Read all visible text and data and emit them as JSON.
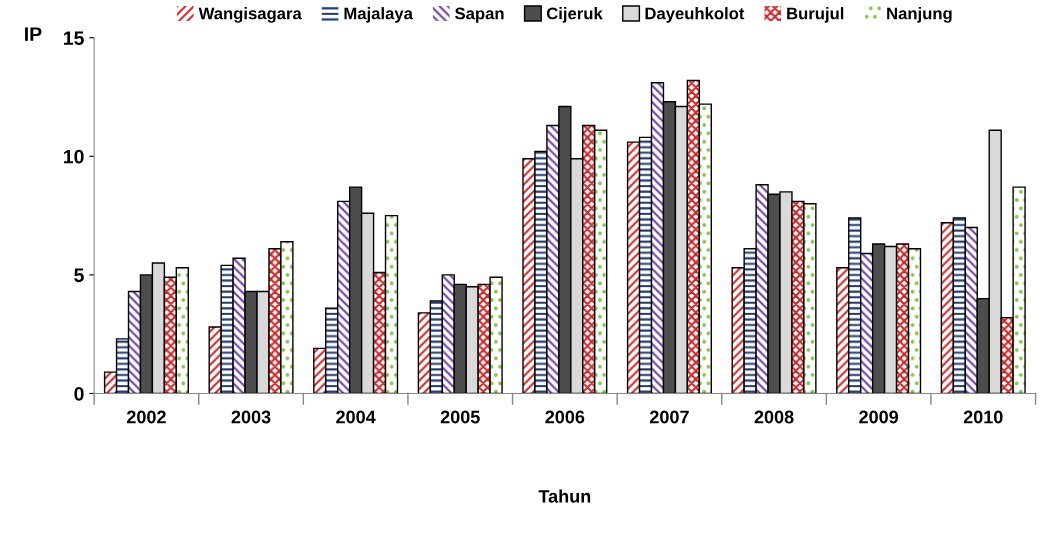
{
  "chart_data": {
    "type": "bar",
    "xlabel": "Tahun",
    "ylabel": "IP",
    "categories": [
      "2002",
      "2003",
      "2004",
      "2005",
      "2006",
      "2007",
      "2008",
      "2009",
      "2010"
    ],
    "series": [
      {
        "name": "Wangisagara",
        "color": "#cc2a2a",
        "values": [
          0.9,
          2.8,
          1.9,
          3.4,
          9.9,
          10.6,
          5.3,
          5.3,
          7.2
        ]
      },
      {
        "name": "Majalaya",
        "color": "#1f3a6e",
        "values": [
          2.3,
          5.4,
          3.6,
          3.9,
          10.2,
          10.8,
          6.1,
          7.4,
          7.4
        ]
      },
      {
        "name": "Sapan",
        "color": "#7040a0",
        "values": [
          4.3,
          5.7,
          8.1,
          5.0,
          11.3,
          13.1,
          8.8,
          5.9,
          7.0
        ]
      },
      {
        "name": "Cijeruk",
        "color": "#4d4d4d",
        "values": [
          5.0,
          4.3,
          8.7,
          4.6,
          12.1,
          12.3,
          8.4,
          6.3,
          4.0
        ]
      },
      {
        "name": "Dayeuhkolot",
        "color": "#d9d9d9",
        "values": [
          5.5,
          4.3,
          7.6,
          4.5,
          9.9,
          12.1,
          8.5,
          6.2,
          11.1
        ]
      },
      {
        "name": "Burujul",
        "color": "#cc2a2a",
        "values": [
          4.9,
          6.1,
          5.1,
          4.6,
          11.3,
          13.2,
          8.1,
          6.3,
          3.2
        ]
      },
      {
        "name": "Nanjung",
        "color": "#80c840",
        "values": [
          5.3,
          6.4,
          7.5,
          4.9,
          11.1,
          12.2,
          8.0,
          6.1,
          8.7
        ]
      }
    ],
    "ylim": [
      0,
      15
    ],
    "yticks": [
      0,
      5,
      10,
      15
    ],
    "legend": "top",
    "grid": false
  }
}
